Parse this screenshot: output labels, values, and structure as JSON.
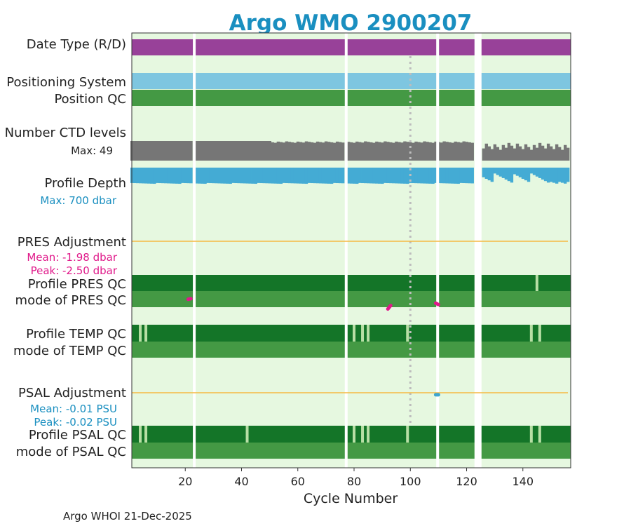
{
  "chart_data": {
    "type": "qc-timeline",
    "title": "Argo WMO 2900207",
    "xlabel": "Cycle Number",
    "xlim": [
      1,
      157
    ],
    "xticks": [
      20,
      40,
      60,
      80,
      100,
      120,
      140
    ],
    "reference_cycle": 100,
    "gaps": [
      {
        "start": 22.7,
        "end": 23.7
      },
      {
        "start": 76.7,
        "end": 77.7
      },
      {
        "start": 109.2,
        "end": 110.2
      },
      {
        "start": 122.8,
        "end": 125.3
      }
    ],
    "row_labels": {
      "date_type": "Date Type (R/D)",
      "positioning": "Positioning System",
      "position_qc": "Position QC",
      "ctd_levels": "Number CTD levels",
      "profile_depth": "Profile Depth",
      "pres_adjustment": "PRES Adjustment",
      "profile_pres_qc": "Profile PRES QC",
      "mode_pres_qc": "mode of PRES QC",
      "profile_temp_qc": "Profile TEMP QC",
      "mode_temp_qc": "mode of TEMP QC",
      "psal_adjustment": "PSAL Adjustment",
      "profile_psal_qc": "Profile PSAL QC",
      "mode_psal_qc": "mode of PSAL QC"
    },
    "ctd_max": "Max: 49",
    "depth_max": "Max:  700 dbar",
    "pres_stats": {
      "mean": "Mean: -1.98 dbar",
      "peak": "Peak: -2.50 dbar"
    },
    "psal_stats": {
      "mean": "Mean: -0.01 PSU",
      "peak": "Peak: -0.02 PSU"
    },
    "ctd_levels_max": 49,
    "profile_depth_max_dbar": 700,
    "temp_qc_flags_cycles": [
      4,
      6,
      80,
      83,
      85,
      99,
      143,
      146
    ],
    "psal_qc_flags_cycles": [
      4,
      6,
      42,
      80,
      83,
      85,
      99,
      143,
      146
    ],
    "pres_qc_flags_cycles": [
      145
    ],
    "pres_adjustment_dbar": [
      [
        1,
        -1.93
      ],
      [
        3,
        -1.95
      ],
      [
        5,
        -1.88
      ],
      [
        7,
        -1.98
      ],
      [
        9,
        -1.92
      ],
      [
        11,
        -1.99
      ],
      [
        13,
        -1.94
      ],
      [
        15,
        -1.86
      ],
      [
        17,
        -2.02
      ],
      [
        19,
        -1.91
      ],
      [
        21,
        -1.97
      ],
      [
        22,
        -1.95
      ],
      [
        24,
        -1.93
      ],
      [
        26,
        -1.8
      ],
      [
        28,
        -1.92
      ],
      [
        30,
        -1.85
      ],
      [
        32,
        -1.92
      ],
      [
        34,
        -1.88
      ],
      [
        36,
        -1.93
      ],
      [
        38,
        -1.9
      ],
      [
        40,
        -1.92
      ],
      [
        42,
        -1.93
      ],
      [
        44,
        -1.94
      ],
      [
        46,
        -1.95
      ],
      [
        48,
        -1.95
      ],
      [
        50,
        -1.96
      ],
      [
        52,
        -1.97
      ],
      [
        54,
        -1.95
      ],
      [
        56,
        -1.97
      ],
      [
        58,
        -1.96
      ],
      [
        60,
        -1.95
      ],
      [
        62,
        -1.94
      ],
      [
        64,
        -1.96
      ],
      [
        66,
        -1.95
      ],
      [
        68,
        -1.96
      ],
      [
        70,
        -1.94
      ],
      [
        72,
        -1.96
      ],
      [
        74,
        -2.0
      ],
      [
        76,
        -2.02
      ],
      [
        78,
        -2.05
      ],
      [
        80,
        -2.07
      ],
      [
        82,
        -2.05
      ],
      [
        84,
        -2.1
      ],
      [
        86,
        -2.12
      ],
      [
        88,
        -2.08
      ],
      [
        90,
        -2.1
      ],
      [
        92,
        -2.3
      ],
      [
        93,
        -2.18
      ],
      [
        95,
        -2.1
      ],
      [
        97,
        -2.06
      ],
      [
        99,
        -2.05
      ],
      [
        101,
        -2.08
      ],
      [
        103,
        -2.05
      ],
      [
        105,
        -2.07
      ],
      [
        107,
        -2.04
      ],
      [
        109,
        -2.1
      ],
      [
        110,
        -2.15
      ],
      [
        112,
        -2.18
      ],
      [
        114,
        -2.14
      ],
      [
        116,
        -2.1
      ],
      [
        118,
        -2.15
      ],
      [
        120,
        -2.08
      ],
      [
        122,
        -2.12
      ],
      [
        126,
        -2.3
      ],
      [
        128,
        -2.35
      ],
      [
        130,
        -2.28
      ],
      [
        132,
        -2.32
      ],
      [
        134,
        -2.26
      ],
      [
        136,
        -2.28
      ],
      [
        138,
        -2.25
      ],
      [
        140,
        -2.22
      ],
      [
        142,
        -2.2
      ],
      [
        144,
        -2.26
      ],
      [
        146,
        -2.28
      ],
      [
        148,
        -2.3
      ],
      [
        150,
        -2.28
      ],
      [
        152,
        -2.35
      ],
      [
        154,
        -2.3
      ],
      [
        156,
        -2.45
      ]
    ],
    "psal_adjustment_psu": [
      [
        1,
        -0.02
      ],
      [
        22,
        -0.02
      ],
      [
        24,
        -0.02
      ],
      [
        36,
        -0.02
      ],
      [
        40,
        -0.018
      ],
      [
        45,
        -0.016
      ],
      [
        50,
        -0.014
      ],
      [
        53,
        -0.012
      ],
      [
        55,
        -0.008
      ],
      [
        60,
        -0.008
      ],
      [
        76,
        -0.008
      ],
      [
        78,
        -0.007
      ],
      [
        109,
        -0.007
      ],
      [
        110,
        -0.007
      ],
      [
        122,
        -0.008
      ],
      [
        126,
        -0.008
      ],
      [
        156,
        -0.008
      ]
    ],
    "footer": "Argo WHOI 21-Dec-2025"
  }
}
